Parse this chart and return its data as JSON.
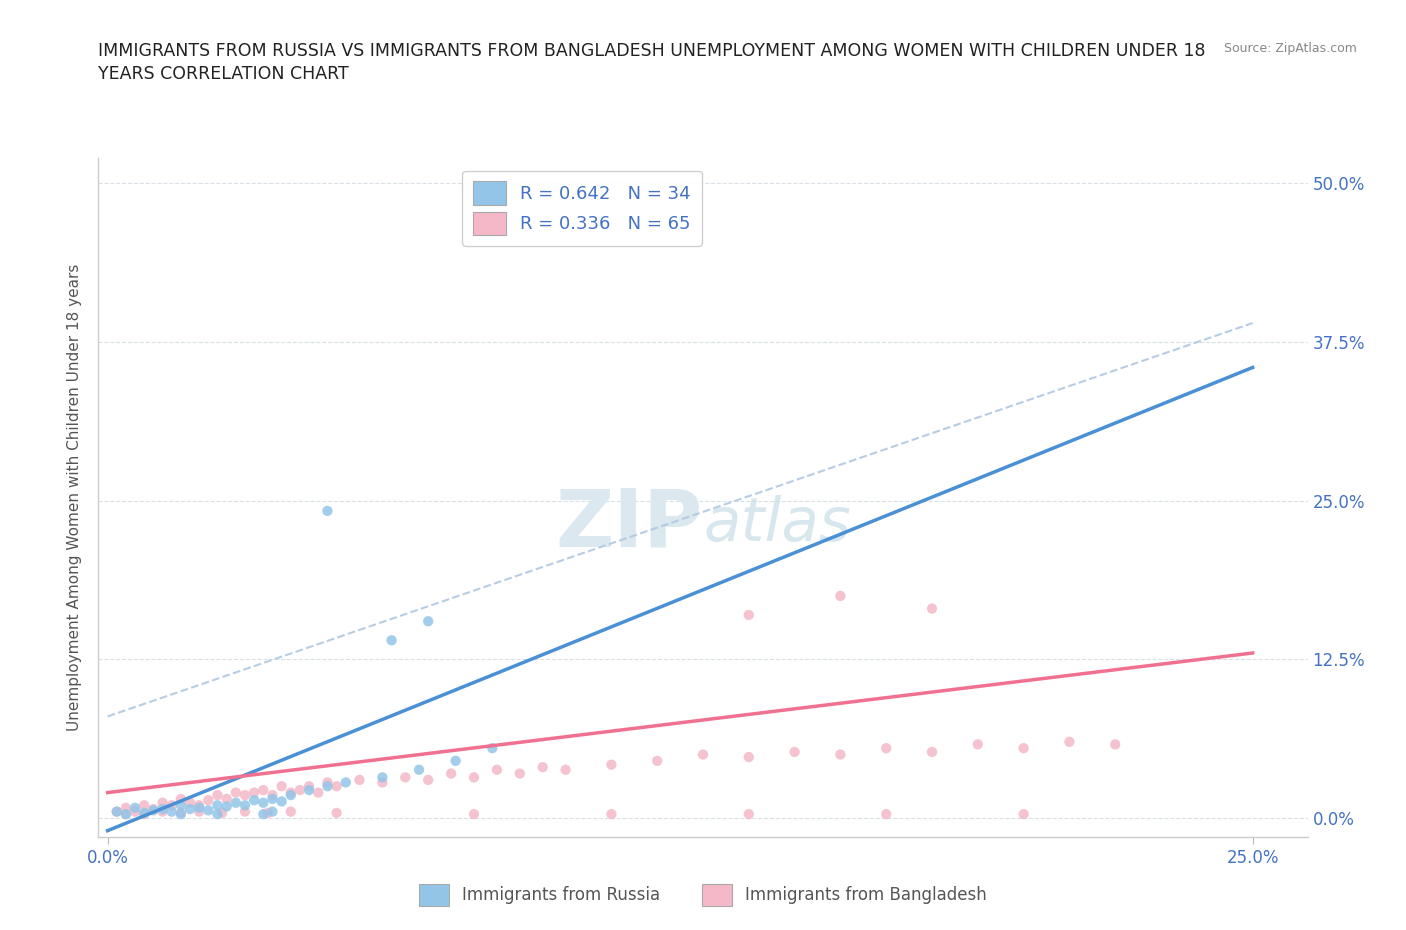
{
  "title_line1": "IMMIGRANTS FROM RUSSIA VS IMMIGRANTS FROM BANGLADESH UNEMPLOYMENT AMONG WOMEN WITH CHILDREN UNDER 18",
  "title_line2": "YEARS CORRELATION CHART",
  "source": "Source: ZipAtlas.com",
  "ylabel": "Unemployment Among Women with Children Under 18 years",
  "legend1_label": "Immigrants from Russia",
  "legend2_label": "Immigrants from Bangladesh",
  "r1": 0.642,
  "n1": 34,
  "r2": 0.336,
  "n2": 65,
  "color_russia": "#92c5e8",
  "color_bangladesh": "#f4b8c8",
  "line_color_russia": "#4a90d4",
  "line_color_bangladesh": "#f07090",
  "line_color_dashed": "#b0c8e0",
  "watermark_color": "#dce8f0",
  "background_color": "#ffffff",
  "grid_color": "#d0d8e0",
  "title_color": "#222222",
  "tick_color": "#4472c4",
  "russia_x": [
    0.002,
    0.004,
    0.006,
    0.008,
    0.01,
    0.012,
    0.014,
    0.016,
    0.018,
    0.02,
    0.022,
    0.024,
    0.026,
    0.028,
    0.03,
    0.032,
    0.034,
    0.036,
    0.038,
    0.04,
    0.044,
    0.048,
    0.052,
    0.06,
    0.068,
    0.076,
    0.084,
    0.048,
    0.036,
    0.024,
    0.016,
    0.062,
    0.07,
    0.034
  ],
  "russia_y": [
    0.005,
    0.003,
    0.008,
    0.004,
    0.006,
    0.007,
    0.005,
    0.01,
    0.007,
    0.008,
    0.006,
    0.01,
    0.009,
    0.012,
    0.01,
    0.014,
    0.012,
    0.015,
    0.013,
    0.018,
    0.022,
    0.025,
    0.028,
    0.032,
    0.038,
    0.045,
    0.055,
    0.242,
    0.005,
    0.003,
    0.003,
    0.14,
    0.155,
    0.003
  ],
  "bangladesh_x": [
    0.002,
    0.004,
    0.006,
    0.008,
    0.01,
    0.012,
    0.014,
    0.016,
    0.018,
    0.02,
    0.022,
    0.024,
    0.026,
    0.028,
    0.03,
    0.032,
    0.034,
    0.036,
    0.038,
    0.04,
    0.042,
    0.044,
    0.046,
    0.048,
    0.05,
    0.055,
    0.06,
    0.065,
    0.07,
    0.075,
    0.08,
    0.085,
    0.09,
    0.095,
    0.1,
    0.11,
    0.12,
    0.13,
    0.14,
    0.15,
    0.16,
    0.17,
    0.18,
    0.19,
    0.2,
    0.21,
    0.22,
    0.14,
    0.16,
    0.18,
    0.004,
    0.008,
    0.012,
    0.016,
    0.02,
    0.025,
    0.03,
    0.035,
    0.04,
    0.05,
    0.08,
    0.11,
    0.14,
    0.17,
    0.2
  ],
  "bangladesh_y": [
    0.005,
    0.008,
    0.005,
    0.01,
    0.007,
    0.012,
    0.01,
    0.015,
    0.012,
    0.01,
    0.014,
    0.018,
    0.015,
    0.02,
    0.018,
    0.02,
    0.022,
    0.018,
    0.025,
    0.02,
    0.022,
    0.025,
    0.02,
    0.028,
    0.025,
    0.03,
    0.028,
    0.032,
    0.03,
    0.035,
    0.032,
    0.038,
    0.035,
    0.04,
    0.038,
    0.042,
    0.045,
    0.05,
    0.048,
    0.052,
    0.05,
    0.055,
    0.052,
    0.058,
    0.055,
    0.06,
    0.058,
    0.16,
    0.175,
    0.165,
    0.003,
    0.003,
    0.005,
    0.004,
    0.005,
    0.004,
    0.005,
    0.004,
    0.005,
    0.004,
    0.003,
    0.003,
    0.003,
    0.003,
    0.003
  ],
  "russia_line_x0": 0.0,
  "russia_line_x1": 0.25,
  "russia_line_y0": -0.01,
  "russia_line_y1": 0.355,
  "bang_line_x0": 0.0,
  "bang_line_x1": 0.25,
  "bang_line_y0": 0.02,
  "bang_line_y1": 0.13,
  "dash_line_x0": 0.0,
  "dash_line_x1": 0.25,
  "dash_line_y0": 0.08,
  "dash_line_y1": 0.39,
  "xlim": [
    -0.002,
    0.262
  ],
  "ylim": [
    -0.015,
    0.52
  ],
  "ytick_values": [
    0.0,
    0.125,
    0.25,
    0.375,
    0.5
  ],
  "ytick_labels": [
    "0.0%",
    "12.5%",
    "25.0%",
    "37.5%",
    "50.0%"
  ],
  "xtick_values": [
    0.0,
    0.25
  ],
  "xtick_labels": [
    "0.0%",
    "25.0%"
  ]
}
